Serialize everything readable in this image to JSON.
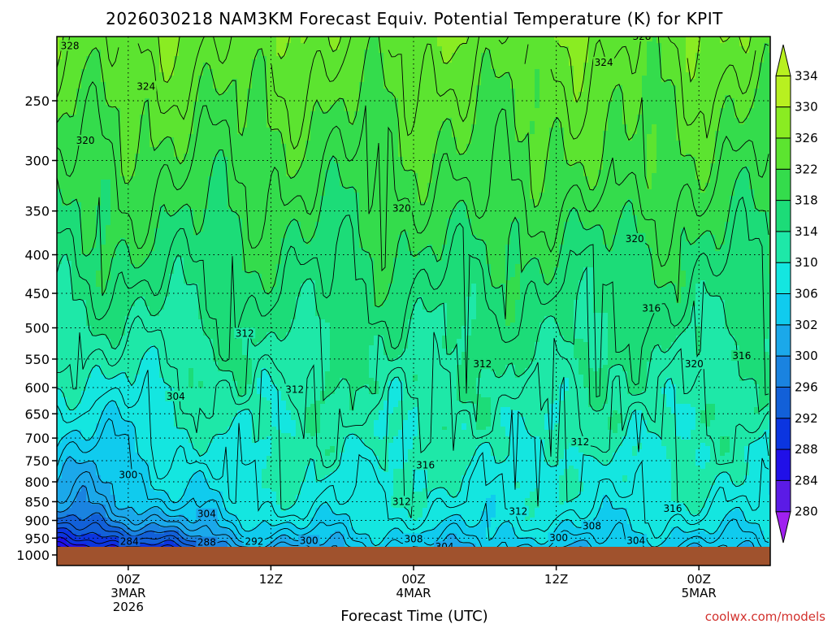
{
  "chart_data": {
    "type": "heatmap",
    "title": "2026030218 NAM3KM Forecast Equiv. Potential Temperature (K) for KPIT",
    "xlabel": "Forecast Time (UTC)",
    "ylabel": "",
    "x_ticks": [
      {
        "lines": [
          "00Z",
          "3MAR",
          "2026"
        ],
        "hours": 6
      },
      {
        "lines": [
          "12Z"
        ],
        "hours": 18
      },
      {
        "lines": [
          "00Z",
          "4MAR"
        ],
        "hours": 30
      },
      {
        "lines": [
          "12Z"
        ],
        "hours": 42
      },
      {
        "lines": [
          "00Z",
          "5MAR"
        ],
        "hours": 54
      }
    ],
    "x_range_hours": [
      0,
      60
    ],
    "y_ticks": [
      "250",
      "300",
      "350",
      "400",
      "450",
      "500",
      "550",
      "600",
      "650",
      "700",
      "750",
      "800",
      "850",
      "900",
      "950",
      "1000"
    ],
    "y_range_hPa": [
      200,
      1020
    ],
    "y_scale": "log-pressure",
    "grid": "dotted horizontal lines at each pressure level",
    "surface_fill_color": "#a0522d",
    "colorbar": {
      "levels": [
        "280",
        "284",
        "288",
        "292",
        "296",
        "300",
        "302",
        "306",
        "310",
        "314",
        "318",
        "322",
        "326",
        "330",
        "334"
      ],
      "colors": [
        "#a020f0",
        "#5b1be6",
        "#2010e8",
        "#0b35e0",
        "#1260d8",
        "#1a83e0",
        "#1ba8ea",
        "#10cbee",
        "#14e6e0",
        "#1ee8a8",
        "#1cdc78",
        "#34dc4c",
        "#5ce430",
        "#8aec22",
        "#b8f020"
      ]
    },
    "contour_labels": [
      {
        "text": "328",
        "h": 1.1,
        "p": 212
      },
      {
        "text": "328",
        "h": 49.2,
        "p": 206
      },
      {
        "text": "324",
        "h": 7.5,
        "p": 240
      },
      {
        "text": "324",
        "h": 46.0,
        "p": 223
      },
      {
        "text": "320",
        "h": 2.4,
        "p": 283
      },
      {
        "text": "320",
        "h": 29.0,
        "p": 348
      },
      {
        "text": "320",
        "h": 48.6,
        "p": 382
      },
      {
        "text": "320",
        "h": 53.6,
        "p": 560
      },
      {
        "text": "316",
        "h": 50.0,
        "p": 472
      },
      {
        "text": "316",
        "h": 57.6,
        "p": 546
      },
      {
        "text": "316",
        "h": 31.0,
        "p": 762
      },
      {
        "text": "316",
        "h": 51.8,
        "p": 870
      },
      {
        "text": "312",
        "h": 15.8,
        "p": 510
      },
      {
        "text": "312",
        "h": 20.0,
        "p": 605
      },
      {
        "text": "312",
        "h": 35.8,
        "p": 560
      },
      {
        "text": "312",
        "h": 29.0,
        "p": 852
      },
      {
        "text": "312",
        "h": 38.8,
        "p": 878
      },
      {
        "text": "312",
        "h": 44.0,
        "p": 710
      },
      {
        "text": "308",
        "h": 30.0,
        "p": 955
      },
      {
        "text": "308",
        "h": 45.0,
        "p": 918
      },
      {
        "text": "304",
        "h": 10.0,
        "p": 618
      },
      {
        "text": "304",
        "h": 12.6,
        "p": 885
      },
      {
        "text": "304",
        "h": 32.6,
        "p": 978
      },
      {
        "text": "304",
        "h": 48.7,
        "p": 960
      },
      {
        "text": "300",
        "h": 6.0,
        "p": 785
      },
      {
        "text": "300",
        "h": 21.2,
        "p": 960
      },
      {
        "text": "300",
        "h": 42.2,
        "p": 952
      },
      {
        "text": "292",
        "h": 16.6,
        "p": 962
      },
      {
        "text": "288",
        "h": 12.6,
        "p": 965
      },
      {
        "text": "284",
        "h": 6.1,
        "p": 962
      }
    ],
    "field_description": "Theta-e increases upward from about 280 K near the surface to about 330 K at 200 hPa; cold shallow layer below 800 hPa early in the period; cellular structures 550-800 hPa after hour 12."
  },
  "credit": "coolwx.com/models"
}
